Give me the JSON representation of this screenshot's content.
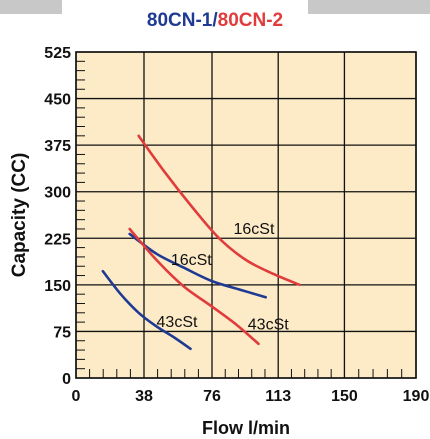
{
  "title": {
    "part1": "80CN-1",
    "separator": "/",
    "part2": "80CN-2",
    "color1": "#1f3a93",
    "color2": "#e03c3c"
  },
  "chart_data": {
    "type": "line",
    "xlabel": "Flow l/min",
    "ylabel": "Capacity (CC)",
    "x_ticks": [
      0,
      38,
      76,
      113,
      150,
      190
    ],
    "y_ticks": [
      0,
      75,
      150,
      225,
      300,
      375,
      450,
      525
    ],
    "xlim": [
      0,
      190
    ],
    "ylim": [
      0,
      525
    ],
    "grid": true,
    "plot_background": "#fdebc8",
    "series": [
      {
        "name": "80CN-1",
        "color": "#1f3a93",
        "curves": [
          {
            "label": "16cSt",
            "points": [
              [
                30,
                232
              ],
              [
                45,
                200
              ],
              [
                60,
                178
              ],
              [
                76,
                156
              ],
              [
                92,
                142
              ],
              [
                106,
                130
              ]
            ]
          },
          {
            "label": "43cSt",
            "points": [
              [
                15,
                172
              ],
              [
                25,
                135
              ],
              [
                35,
                105
              ],
              [
                45,
                83
              ],
              [
                55,
                65
              ],
              [
                64,
                47
              ]
            ]
          }
        ]
      },
      {
        "name": "80CN-2",
        "color": "#e03c3c",
        "curves": [
          {
            "label": "16cSt",
            "points": [
              [
                35,
                390
              ],
              [
                50,
                330
              ],
              [
                65,
                275
              ],
              [
                80,
                225
              ],
              [
                95,
                190
              ],
              [
                110,
                168
              ],
              [
                125,
                150
              ]
            ]
          },
          {
            "label": "43cSt",
            "points": [
              [
                30,
                240
              ],
              [
                45,
                190
              ],
              [
                60,
                148
              ],
              [
                76,
                115
              ],
              [
                90,
                85
              ],
              [
                102,
                55
              ]
            ]
          }
        ]
      }
    ],
    "annotations": [
      {
        "text": "16cSt",
        "x": 88,
        "y": 232
      },
      {
        "text": "16cSt",
        "x": 53,
        "y": 182
      },
      {
        "text": "43cSt",
        "x": 45,
        "y": 82
      },
      {
        "text": "43cSt",
        "x": 96,
        "y": 78
      }
    ]
  }
}
